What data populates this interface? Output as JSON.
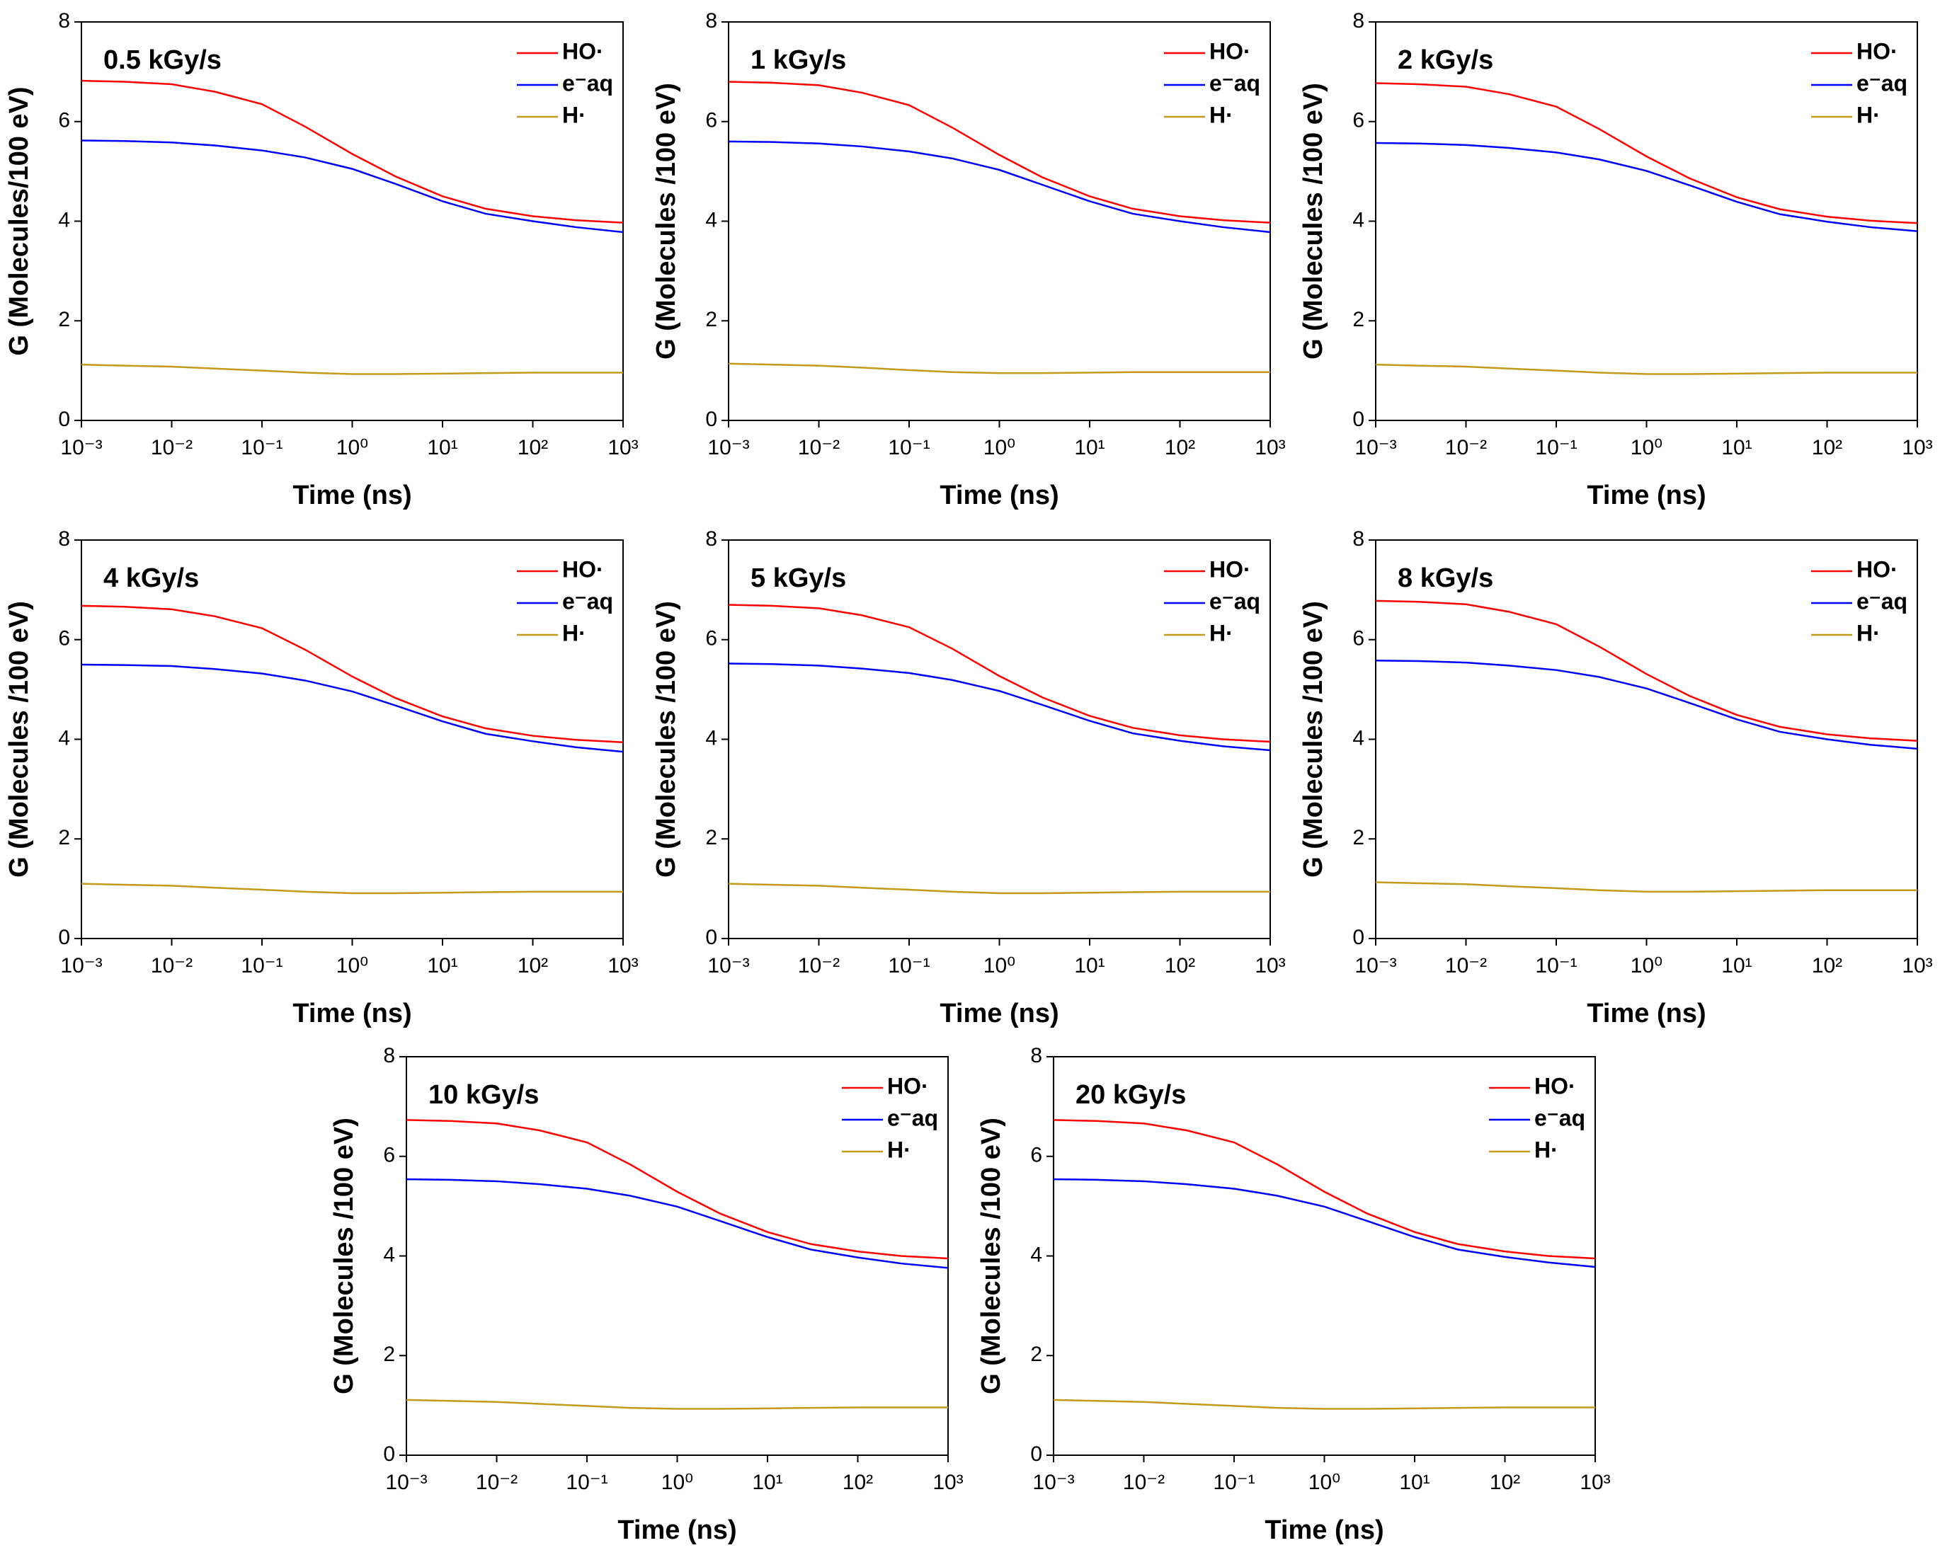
{
  "chart_data": [
    {
      "type": "line",
      "title": "0.5 kGy/s",
      "xlabel": "Time (ns)",
      "ylabel": "G (Molecules/100 eV)",
      "log_x": true,
      "legend": "upper right",
      "x": [
        0.001,
        0.003,
        0.01,
        0.03,
        0.1,
        0.3,
        1,
        3,
        10,
        30,
        100,
        300,
        1000
      ],
      "series": [
        {
          "name": "HO·",
          "color": "#ff0000",
          "values": [
            6.82,
            6.8,
            6.75,
            6.6,
            6.35,
            5.9,
            5.35,
            4.9,
            4.5,
            4.25,
            4.1,
            4.02,
            3.97
          ]
        },
        {
          "name": "e⁻aq",
          "color": "#0000ff",
          "values": [
            5.62,
            5.61,
            5.58,
            5.52,
            5.42,
            5.28,
            5.05,
            4.75,
            4.4,
            4.15,
            4.0,
            3.88,
            3.78
          ]
        },
        {
          "name": "H·",
          "color": "#c49a1b",
          "values": [
            1.12,
            1.1,
            1.08,
            1.04,
            1.0,
            0.96,
            0.93,
            0.93,
            0.94,
            0.95,
            0.96,
            0.96,
            0.96
          ]
        }
      ],
      "xlim": [
        0.001,
        1000
      ],
      "ylim": [
        0,
        8
      ],
      "xticks": [
        {
          "value": 0.001,
          "label": "10⁻³"
        },
        {
          "value": 0.01,
          "label": "10⁻²"
        },
        {
          "value": 0.1,
          "label": "10⁻¹"
        },
        {
          "value": 1,
          "label": "10⁰"
        },
        {
          "value": 10,
          "label": "10¹"
        },
        {
          "value": 100,
          "label": "10²"
        },
        {
          "value": 1000,
          "label": "10³"
        }
      ],
      "yticks": [
        0,
        2,
        4,
        6,
        8
      ]
    },
    {
      "type": "line",
      "title": "1 kGy/s",
      "xlabel": "Time (ns)",
      "ylabel": "G (Molecules /100 eV)",
      "log_x": true,
      "legend": "upper right",
      "x": [
        0.001,
        0.003,
        0.01,
        0.03,
        0.1,
        0.3,
        1,
        3,
        10,
        30,
        100,
        300,
        1000
      ],
      "series": [
        {
          "name": "HO·",
          "color": "#ff0000",
          "values": [
            6.8,
            6.78,
            6.73,
            6.58,
            6.33,
            5.88,
            5.33,
            4.88,
            4.5,
            4.25,
            4.1,
            4.02,
            3.97
          ]
        },
        {
          "name": "e⁻aq",
          "color": "#0000ff",
          "values": [
            5.6,
            5.59,
            5.56,
            5.5,
            5.4,
            5.26,
            5.03,
            4.73,
            4.4,
            4.15,
            4.0,
            3.88,
            3.78
          ]
        },
        {
          "name": "H·",
          "color": "#c49a1b",
          "values": [
            1.14,
            1.12,
            1.1,
            1.06,
            1.01,
            0.97,
            0.95,
            0.95,
            0.96,
            0.97,
            0.97,
            0.97,
            0.97
          ]
        }
      ],
      "xlim": [
        0.001,
        1000
      ],
      "ylim": [
        0,
        8
      ],
      "xticks": [
        {
          "value": 0.001,
          "label": "10⁻³"
        },
        {
          "value": 0.01,
          "label": "10⁻²"
        },
        {
          "value": 0.1,
          "label": "10⁻¹"
        },
        {
          "value": 1,
          "label": "10⁰"
        },
        {
          "value": 10,
          "label": "10¹"
        },
        {
          "value": 100,
          "label": "10²"
        },
        {
          "value": 1000,
          "label": "10³"
        }
      ],
      "yticks": [
        0,
        2,
        4,
        6,
        8
      ]
    },
    {
      "type": "line",
      "title": "2 kGy/s",
      "xlabel": "Time (ns)",
      "ylabel": "G (Molecules /100 eV)",
      "log_x": true,
      "legend": "upper right",
      "x": [
        0.001,
        0.003,
        0.01,
        0.03,
        0.1,
        0.3,
        1,
        3,
        10,
        30,
        100,
        300,
        1000
      ],
      "series": [
        {
          "name": "HO·",
          "color": "#ff0000",
          "values": [
            6.77,
            6.75,
            6.7,
            6.55,
            6.3,
            5.85,
            5.3,
            4.86,
            4.48,
            4.24,
            4.09,
            4.01,
            3.96
          ]
        },
        {
          "name": "e⁻aq",
          "color": "#0000ff",
          "values": [
            5.57,
            5.56,
            5.53,
            5.47,
            5.38,
            5.24,
            5.01,
            4.72,
            4.39,
            4.14,
            3.99,
            3.88,
            3.8
          ]
        },
        {
          "name": "H·",
          "color": "#c49a1b",
          "values": [
            1.12,
            1.1,
            1.08,
            1.04,
            1.0,
            0.96,
            0.93,
            0.93,
            0.94,
            0.95,
            0.96,
            0.96,
            0.96
          ]
        }
      ],
      "xlim": [
        0.001,
        1000
      ],
      "ylim": [
        0,
        8
      ],
      "xticks": [
        {
          "value": 0.001,
          "label": "10⁻³"
        },
        {
          "value": 0.01,
          "label": "10⁻²"
        },
        {
          "value": 0.1,
          "label": "10⁻¹"
        },
        {
          "value": 1,
          "label": "10⁰"
        },
        {
          "value": 10,
          "label": "10¹"
        },
        {
          "value": 100,
          "label": "10²"
        },
        {
          "value": 1000,
          "label": "10³"
        }
      ],
      "yticks": [
        0,
        2,
        4,
        6,
        8
      ]
    },
    {
      "type": "line",
      "title": "4 kGy/s",
      "xlabel": "Time (ns)",
      "ylabel": "G (Molecules /100 eV)",
      "log_x": true,
      "legend": "upper right",
      "x": [
        0.001,
        0.003,
        0.01,
        0.03,
        0.1,
        0.3,
        1,
        3,
        10,
        30,
        100,
        300,
        1000
      ],
      "series": [
        {
          "name": "HO·",
          "color": "#ff0000",
          "values": [
            6.68,
            6.66,
            6.61,
            6.47,
            6.23,
            5.8,
            5.26,
            4.83,
            4.46,
            4.22,
            4.07,
            3.99,
            3.94
          ]
        },
        {
          "name": "e⁻aq",
          "color": "#0000ff",
          "values": [
            5.5,
            5.49,
            5.47,
            5.41,
            5.32,
            5.18,
            4.96,
            4.68,
            4.36,
            4.11,
            3.96,
            3.84,
            3.75
          ]
        },
        {
          "name": "H·",
          "color": "#c49a1b",
          "values": [
            1.1,
            1.08,
            1.06,
            1.02,
            0.98,
            0.94,
            0.91,
            0.91,
            0.92,
            0.93,
            0.94,
            0.94,
            0.94
          ]
        }
      ],
      "xlim": [
        0.001,
        1000
      ],
      "ylim": [
        0,
        8
      ],
      "xticks": [
        {
          "value": 0.001,
          "label": "10⁻³"
        },
        {
          "value": 0.01,
          "label": "10⁻²"
        },
        {
          "value": 0.1,
          "label": "10⁻¹"
        },
        {
          "value": 1,
          "label": "10⁰"
        },
        {
          "value": 10,
          "label": "10¹"
        },
        {
          "value": 100,
          "label": "10²"
        },
        {
          "value": 1000,
          "label": "10³"
        }
      ],
      "yticks": [
        0,
        2,
        4,
        6,
        8
      ]
    },
    {
      "type": "line",
      "title": "5 kGy/s",
      "xlabel": "Time (ns)",
      "ylabel": "G (Molecules /100 eV)",
      "log_x": true,
      "legend": "upper right",
      "x": [
        0.001,
        0.003,
        0.01,
        0.03,
        0.1,
        0.3,
        1,
        3,
        10,
        30,
        100,
        300,
        1000
      ],
      "series": [
        {
          "name": "HO·",
          "color": "#ff0000",
          "values": [
            6.7,
            6.68,
            6.63,
            6.49,
            6.25,
            5.82,
            5.27,
            4.84,
            4.47,
            4.23,
            4.08,
            4.0,
            3.95
          ]
        },
        {
          "name": "e⁻aq",
          "color": "#0000ff",
          "values": [
            5.52,
            5.51,
            5.48,
            5.42,
            5.33,
            5.19,
            4.97,
            4.69,
            4.37,
            4.12,
            3.97,
            3.86,
            3.78
          ]
        },
        {
          "name": "H·",
          "color": "#c49a1b",
          "values": [
            1.1,
            1.08,
            1.06,
            1.02,
            0.98,
            0.94,
            0.91,
            0.91,
            0.92,
            0.93,
            0.94,
            0.94,
            0.94
          ]
        }
      ],
      "xlim": [
        0.001,
        1000
      ],
      "ylim": [
        0,
        8
      ],
      "xticks": [
        {
          "value": 0.001,
          "label": "10⁻³"
        },
        {
          "value": 0.01,
          "label": "10⁻²"
        },
        {
          "value": 0.1,
          "label": "10⁻¹"
        },
        {
          "value": 1,
          "label": "10⁰"
        },
        {
          "value": 10,
          "label": "10¹"
        },
        {
          "value": 100,
          "label": "10²"
        },
        {
          "value": 1000,
          "label": "10³"
        }
      ],
      "yticks": [
        0,
        2,
        4,
        6,
        8
      ]
    },
    {
      "type": "line",
      "title": "8 kGy/s",
      "xlabel": "Time (ns)",
      "ylabel": "G (Molecules /100 eV)",
      "log_x": true,
      "legend": "upper right",
      "x": [
        0.001,
        0.003,
        0.01,
        0.03,
        0.1,
        0.3,
        1,
        3,
        10,
        30,
        100,
        300,
        1000
      ],
      "series": [
        {
          "name": "HO·",
          "color": "#ff0000",
          "values": [
            6.78,
            6.76,
            6.71,
            6.56,
            6.31,
            5.86,
            5.31,
            4.87,
            4.49,
            4.25,
            4.1,
            4.02,
            3.97
          ]
        },
        {
          "name": "e⁻aq",
          "color": "#0000ff",
          "values": [
            5.58,
            5.57,
            5.54,
            5.48,
            5.39,
            5.25,
            5.02,
            4.73,
            4.4,
            4.15,
            4.0,
            3.89,
            3.81
          ]
        },
        {
          "name": "H·",
          "color": "#c49a1b",
          "values": [
            1.13,
            1.11,
            1.09,
            1.05,
            1.01,
            0.97,
            0.94,
            0.94,
            0.95,
            0.96,
            0.97,
            0.97,
            0.97
          ]
        }
      ],
      "xlim": [
        0.001,
        1000
      ],
      "ylim": [
        0,
        8
      ],
      "xticks": [
        {
          "value": 0.001,
          "label": "10⁻³"
        },
        {
          "value": 0.01,
          "label": "10⁻²"
        },
        {
          "value": 0.1,
          "label": "10⁻¹"
        },
        {
          "value": 1,
          "label": "10⁰"
        },
        {
          "value": 10,
          "label": "10¹"
        },
        {
          "value": 100,
          "label": "10²"
        },
        {
          "value": 1000,
          "label": "10³"
        }
      ],
      "yticks": [
        0,
        2,
        4,
        6,
        8
      ]
    },
    {
      "type": "line",
      "title": "10 kGy/s",
      "xlabel": "Time (ns)",
      "ylabel": "G (Molecules /100 eV)",
      "log_x": true,
      "legend": "upper right",
      "x": [
        0.001,
        0.003,
        0.01,
        0.03,
        0.1,
        0.3,
        1,
        3,
        10,
        30,
        100,
        300,
        1000
      ],
      "series": [
        {
          "name": "HO·",
          "color": "#ff0000",
          "values": [
            6.73,
            6.71,
            6.66,
            6.52,
            6.28,
            5.84,
            5.29,
            4.85,
            4.48,
            4.24,
            4.09,
            4.0,
            3.95
          ]
        },
        {
          "name": "e⁻aq",
          "color": "#0000ff",
          "values": [
            5.54,
            5.53,
            5.5,
            5.44,
            5.35,
            5.21,
            4.99,
            4.7,
            4.38,
            4.13,
            3.97,
            3.85,
            3.76
          ]
        },
        {
          "name": "H·",
          "color": "#c49a1b",
          "values": [
            1.11,
            1.09,
            1.07,
            1.03,
            0.99,
            0.95,
            0.93,
            0.93,
            0.94,
            0.95,
            0.96,
            0.96,
            0.96
          ]
        }
      ],
      "xlim": [
        0.001,
        1000
      ],
      "ylim": [
        0,
        8
      ],
      "xticks": [
        {
          "value": 0.001,
          "label": "10⁻³"
        },
        {
          "value": 0.01,
          "label": "10⁻²"
        },
        {
          "value": 0.1,
          "label": "10⁻¹"
        },
        {
          "value": 1,
          "label": "10⁰"
        },
        {
          "value": 10,
          "label": "10¹"
        },
        {
          "value": 100,
          "label": "10²"
        },
        {
          "value": 1000,
          "label": "10³"
        }
      ],
      "yticks": [
        0,
        2,
        4,
        6,
        8
      ]
    },
    {
      "type": "line",
      "title": "20 kGy/s",
      "xlabel": "Time (ns)",
      "ylabel": "G (Molecules /100 eV)",
      "log_x": true,
      "legend": "upper right",
      "x": [
        0.001,
        0.003,
        0.01,
        0.03,
        0.1,
        0.3,
        1,
        3,
        10,
        30,
        100,
        300,
        1000
      ],
      "series": [
        {
          "name": "HO·",
          "color": "#ff0000",
          "values": [
            6.73,
            6.71,
            6.66,
            6.52,
            6.28,
            5.84,
            5.29,
            4.85,
            4.48,
            4.24,
            4.09,
            4.0,
            3.95
          ]
        },
        {
          "name": "e⁻aq",
          "color": "#0000ff",
          "values": [
            5.54,
            5.53,
            5.5,
            5.44,
            5.35,
            5.21,
            4.99,
            4.7,
            4.38,
            4.13,
            3.98,
            3.87,
            3.78
          ]
        },
        {
          "name": "H·",
          "color": "#c49a1b",
          "values": [
            1.11,
            1.09,
            1.07,
            1.03,
            0.99,
            0.95,
            0.93,
            0.93,
            0.94,
            0.95,
            0.96,
            0.96,
            0.96
          ]
        }
      ],
      "xlim": [
        0.001,
        1000
      ],
      "ylim": [
        0,
        8
      ],
      "xticks": [
        {
          "value": 0.001,
          "label": "10⁻³"
        },
        {
          "value": 0.01,
          "label": "10⁻²"
        },
        {
          "value": 0.1,
          "label": "10⁻¹"
        },
        {
          "value": 1,
          "label": "10⁰"
        },
        {
          "value": 10,
          "label": "10¹"
        },
        {
          "value": 100,
          "label": "10²"
        },
        {
          "value": 1000,
          "label": "10³"
        }
      ],
      "yticks": [
        0,
        2,
        4,
        6,
        8
      ]
    }
  ]
}
